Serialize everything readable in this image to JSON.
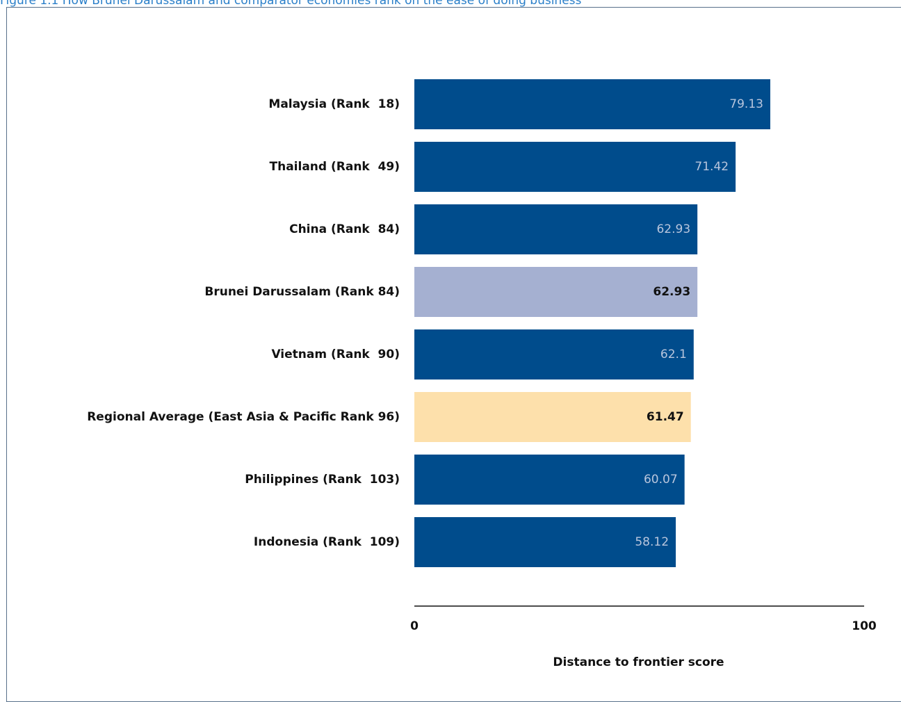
{
  "figure": {
    "caption_prefix": "Figure ",
    "caption_number": "1.1",
    "caption_text": " How Brunei Darussalam and comparator economies rank on the ease of doing business"
  },
  "chart_data": {
    "type": "bar",
    "orientation": "horizontal",
    "title": "",
    "xlabel": "Distance to frontier score",
    "ylabel": "",
    "xlim": [
      0,
      100
    ],
    "x_ticks": [
      "0",
      "100"
    ],
    "grid": false,
    "legend": "none",
    "categories": [
      "Malaysia (Rank  18)",
      "Thailand (Rank  49)",
      "China (Rank  84)",
      "Brunei Darussalam (Rank 84)",
      "Vietnam (Rank  90)",
      "Regional Average (East Asia & Pacific Rank 96)",
      "Philippines (Rank  103)",
      "Indonesia (Rank  109)"
    ],
    "values": [
      79.13,
      71.42,
      62.93,
      62.93,
      62.1,
      61.47,
      60.07,
      58.12
    ],
    "value_labels": [
      "79.13",
      "71.42",
      "62.93",
      "62.93",
      "62.1",
      "61.47",
      "60.07",
      "58.12"
    ],
    "bar_colors": [
      "#004c8c",
      "#004c8c",
      "#004c8c",
      "#a5b0d1",
      "#004c8c",
      "#fde0ab",
      "#004c8c",
      "#004c8c"
    ],
    "value_label_colors": [
      "#b9c6dd",
      "#b9c6dd",
      "#b9c6dd",
      "#111111",
      "#b9c6dd",
      "#111111",
      "#b9c6dd",
      "#b9c6dd"
    ],
    "value_label_bold": [
      false,
      false,
      false,
      true,
      false,
      true,
      false,
      false
    ]
  }
}
